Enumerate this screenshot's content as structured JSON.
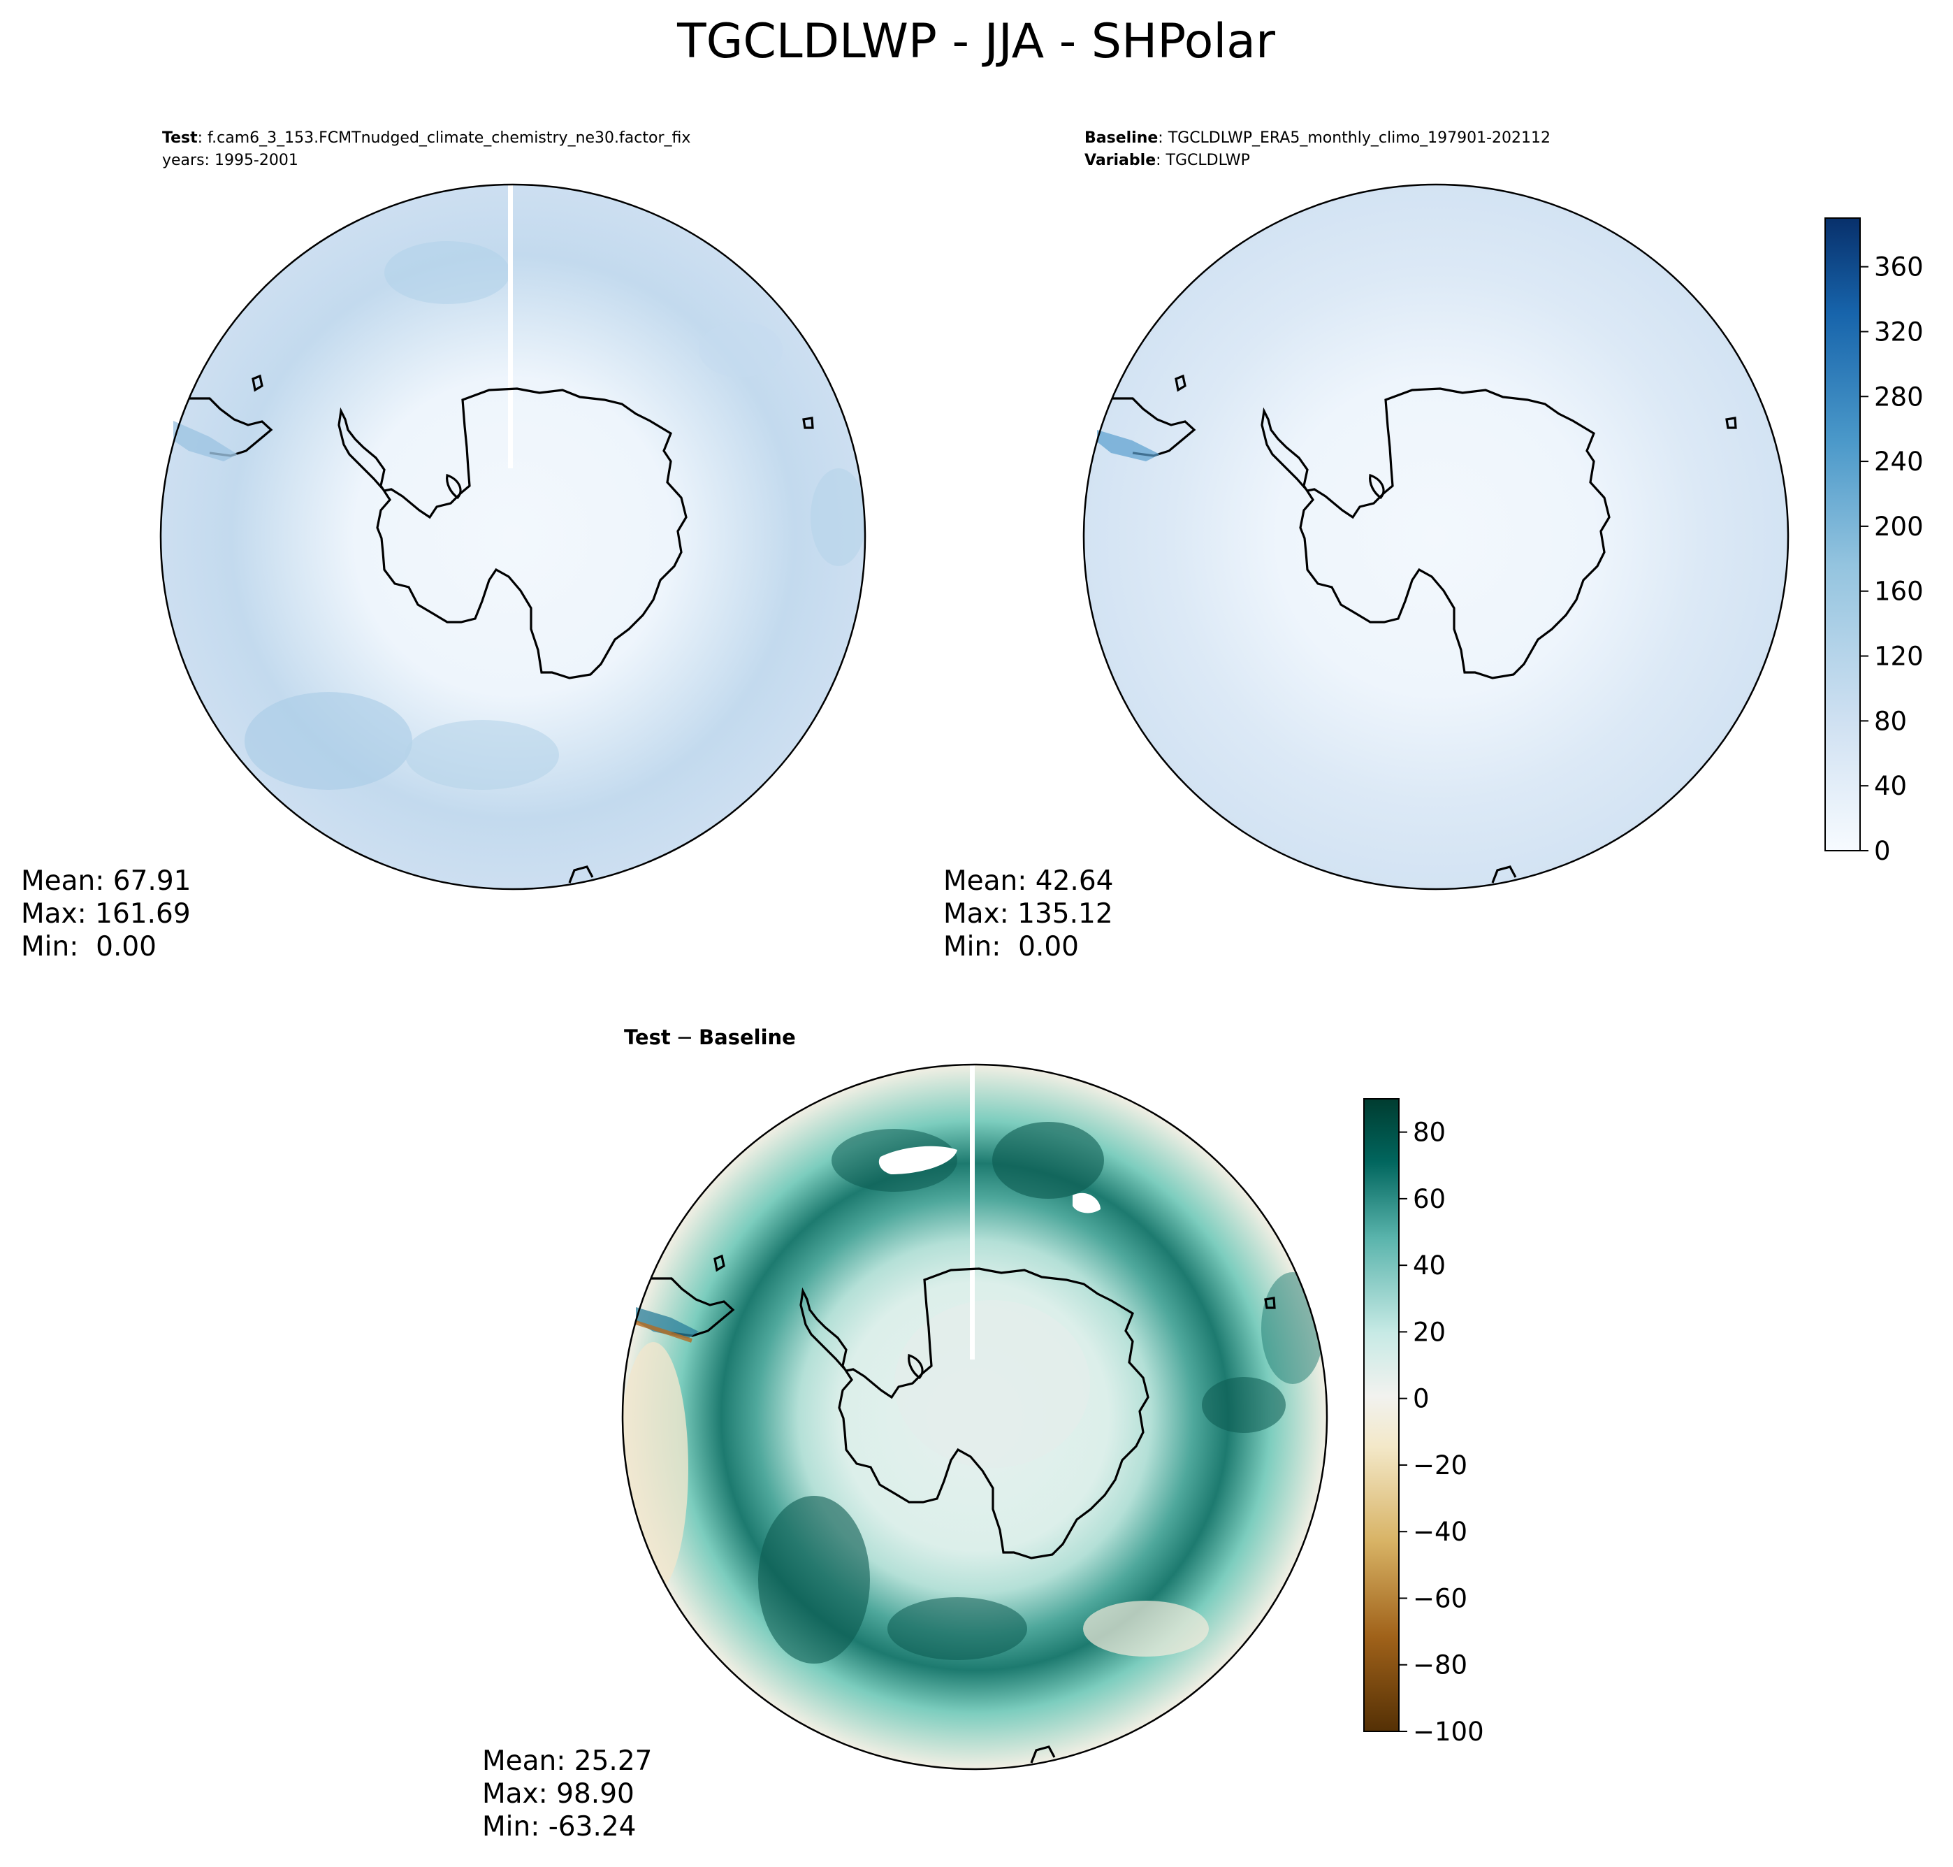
{
  "figure": {
    "title": "TGCLDLWP - JJA - SHPolar"
  },
  "panels": {
    "test": {
      "header_key_1": "Test",
      "header_val_1": ": f.cam6_3_153.FCMTnudged_climate_chemistry_ne30.factor_fix",
      "header_line_2": "years: 1995-2001",
      "stats": {
        "mean": "Mean: 67.91",
        "max": "Max: 161.69",
        "min": "Min:  0.00"
      }
    },
    "baseline": {
      "header_key_1": "Baseline",
      "header_val_1": ": TGCLDLWP_ERA5_monthly_climo_197901-202112",
      "header_key_2": "Variable",
      "header_val_2": ": TGCLDLWP",
      "stats": {
        "mean": "Mean: 42.64",
        "max": "Max: 135.12",
        "min": "Min:  0.00"
      }
    },
    "diff": {
      "header_a": "Test",
      "header_op": "−",
      "header_b": "Baseline",
      "stats": {
        "mean": "Mean: 25.27",
        "max": "Max: 98.90",
        "min": "Min: -63.24"
      }
    }
  },
  "colorbars": {
    "abs": {
      "ticks": [
        "0",
        "40",
        "80",
        "120",
        "160",
        "200",
        "240",
        "280",
        "320",
        "360"
      ],
      "range": [
        0,
        390
      ],
      "colormap": "Blues"
    },
    "diff": {
      "ticks": [
        "−100",
        "−80",
        "−60",
        "−40",
        "−20",
        "0",
        "20",
        "40",
        "60",
        "80"
      ],
      "range": [
        -100,
        90
      ],
      "colormap": "BrBG"
    }
  },
  "colors": {
    "abs_low": "#f7fbff",
    "abs_high": "#08306b",
    "diff_low": "#543005",
    "diff_mid": "#f5f5f5",
    "diff_high": "#003c30"
  }
}
